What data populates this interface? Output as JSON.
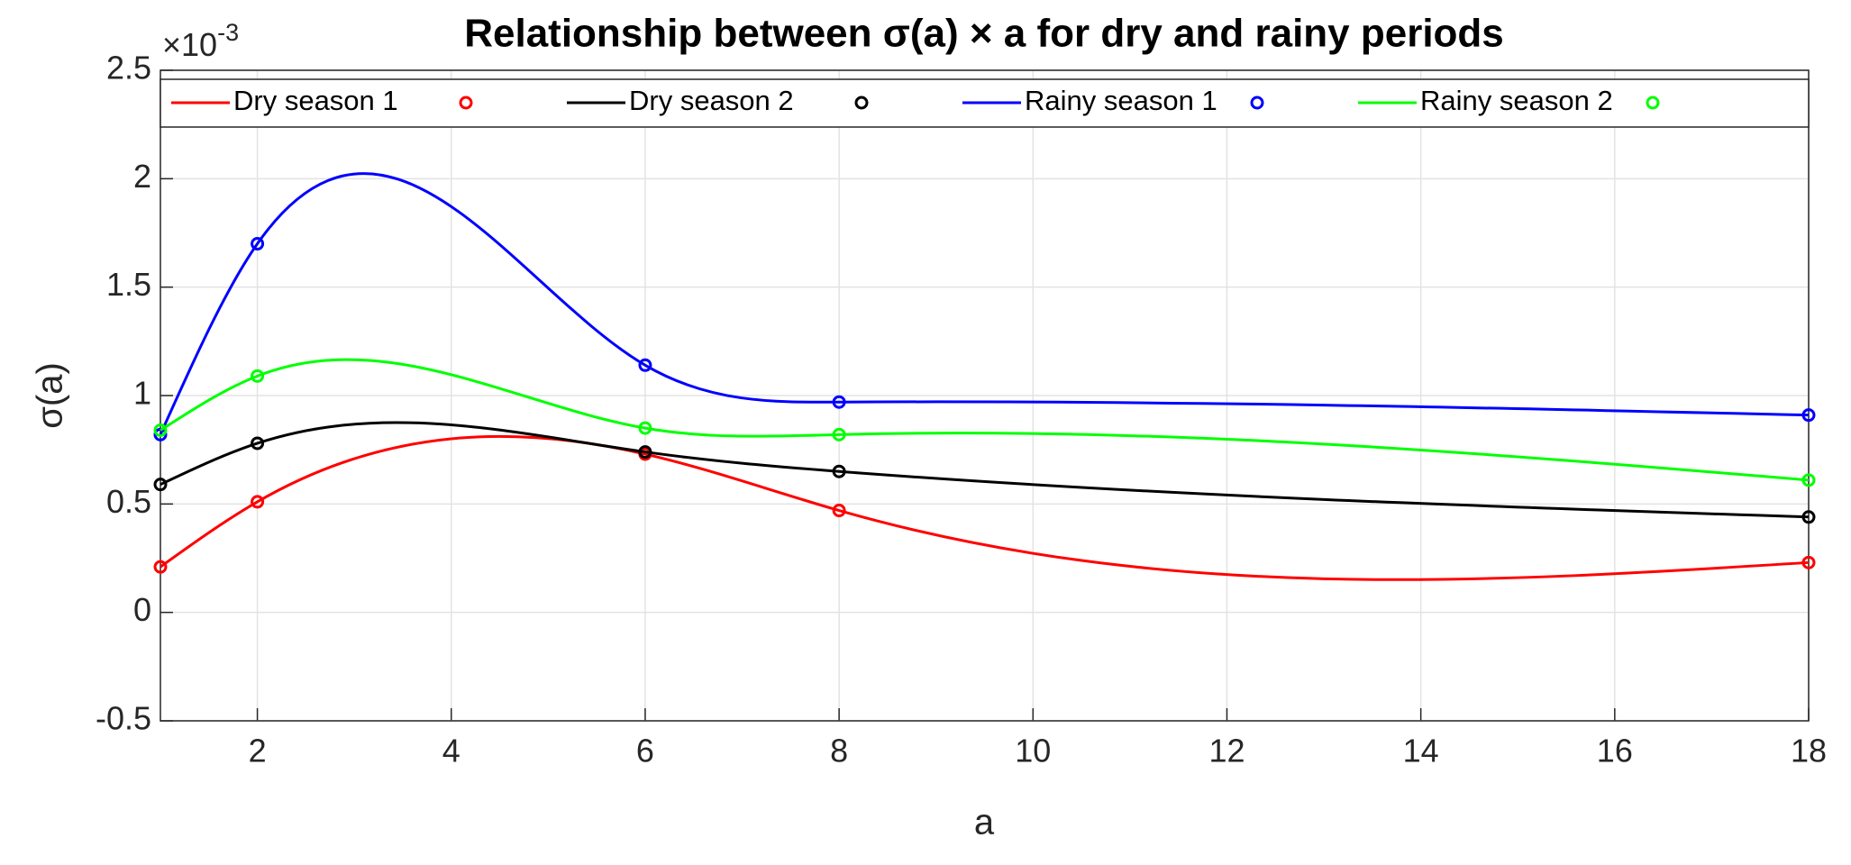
{
  "chart_data": {
    "type": "line",
    "title": "Relationship between σ(a) × a for dry and rainy periods",
    "x_label": "a",
    "y_label": "σ(a)",
    "y_multiplier": {
      "base": "×10",
      "exponent": "-3"
    },
    "x": [
      1,
      2,
      6,
      8,
      18
    ],
    "series": [
      {
        "name": "Dry season 1",
        "color": "#ff0000",
        "values": [
          0.21,
          0.51,
          0.73,
          0.47,
          0.23
        ]
      },
      {
        "name": "Dry season 2",
        "color": "#000000",
        "values": [
          0.59,
          0.78,
          0.74,
          0.65,
          0.44
        ]
      },
      {
        "name": "Rainy season 1",
        "color": "#0000ff",
        "values": [
          0.82,
          1.7,
          1.14,
          0.97,
          0.91
        ]
      },
      {
        "name": "Rainy season 2",
        "color": "#00ff00",
        "values": [
          0.84,
          1.09,
          0.85,
          0.82,
          0.61
        ]
      }
    ],
    "xlim": [
      1,
      18
    ],
    "xticks": [
      2,
      4,
      6,
      8,
      10,
      12,
      14,
      16,
      18
    ],
    "ylim": [
      -0.5,
      2.5
    ],
    "yticks": [
      -0.5,
      0,
      0.5,
      1,
      1.5,
      2,
      2.5
    ],
    "grid": true,
    "legend": "top"
  }
}
